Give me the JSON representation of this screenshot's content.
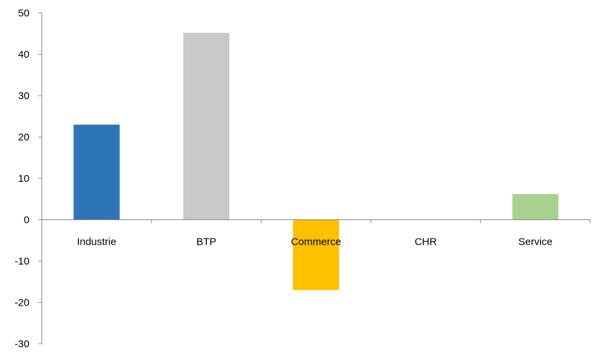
{
  "chart_data": {
    "type": "bar",
    "categories": [
      "Industrie",
      "BTP",
      "Commerce",
      "CHR",
      "Service"
    ],
    "values": [
      23,
      45.2,
      -17,
      0,
      6.2
    ],
    "colors": [
      "#2e75b6",
      "#c9c9c9",
      "#ffc000",
      "#ffffff",
      "#a9d18e"
    ],
    "ylim": [
      -30,
      50
    ],
    "yticks": [
      -30,
      -20,
      -10,
      0,
      10,
      20,
      30,
      40,
      50
    ],
    "ytick_labels": [
      "-30",
      "-20",
      "-10",
      "0",
      "10",
      "20",
      "30",
      "40",
      "50"
    ],
    "grid": false,
    "legend": "none",
    "title": "",
    "xlabel": "",
    "ylabel": ""
  }
}
